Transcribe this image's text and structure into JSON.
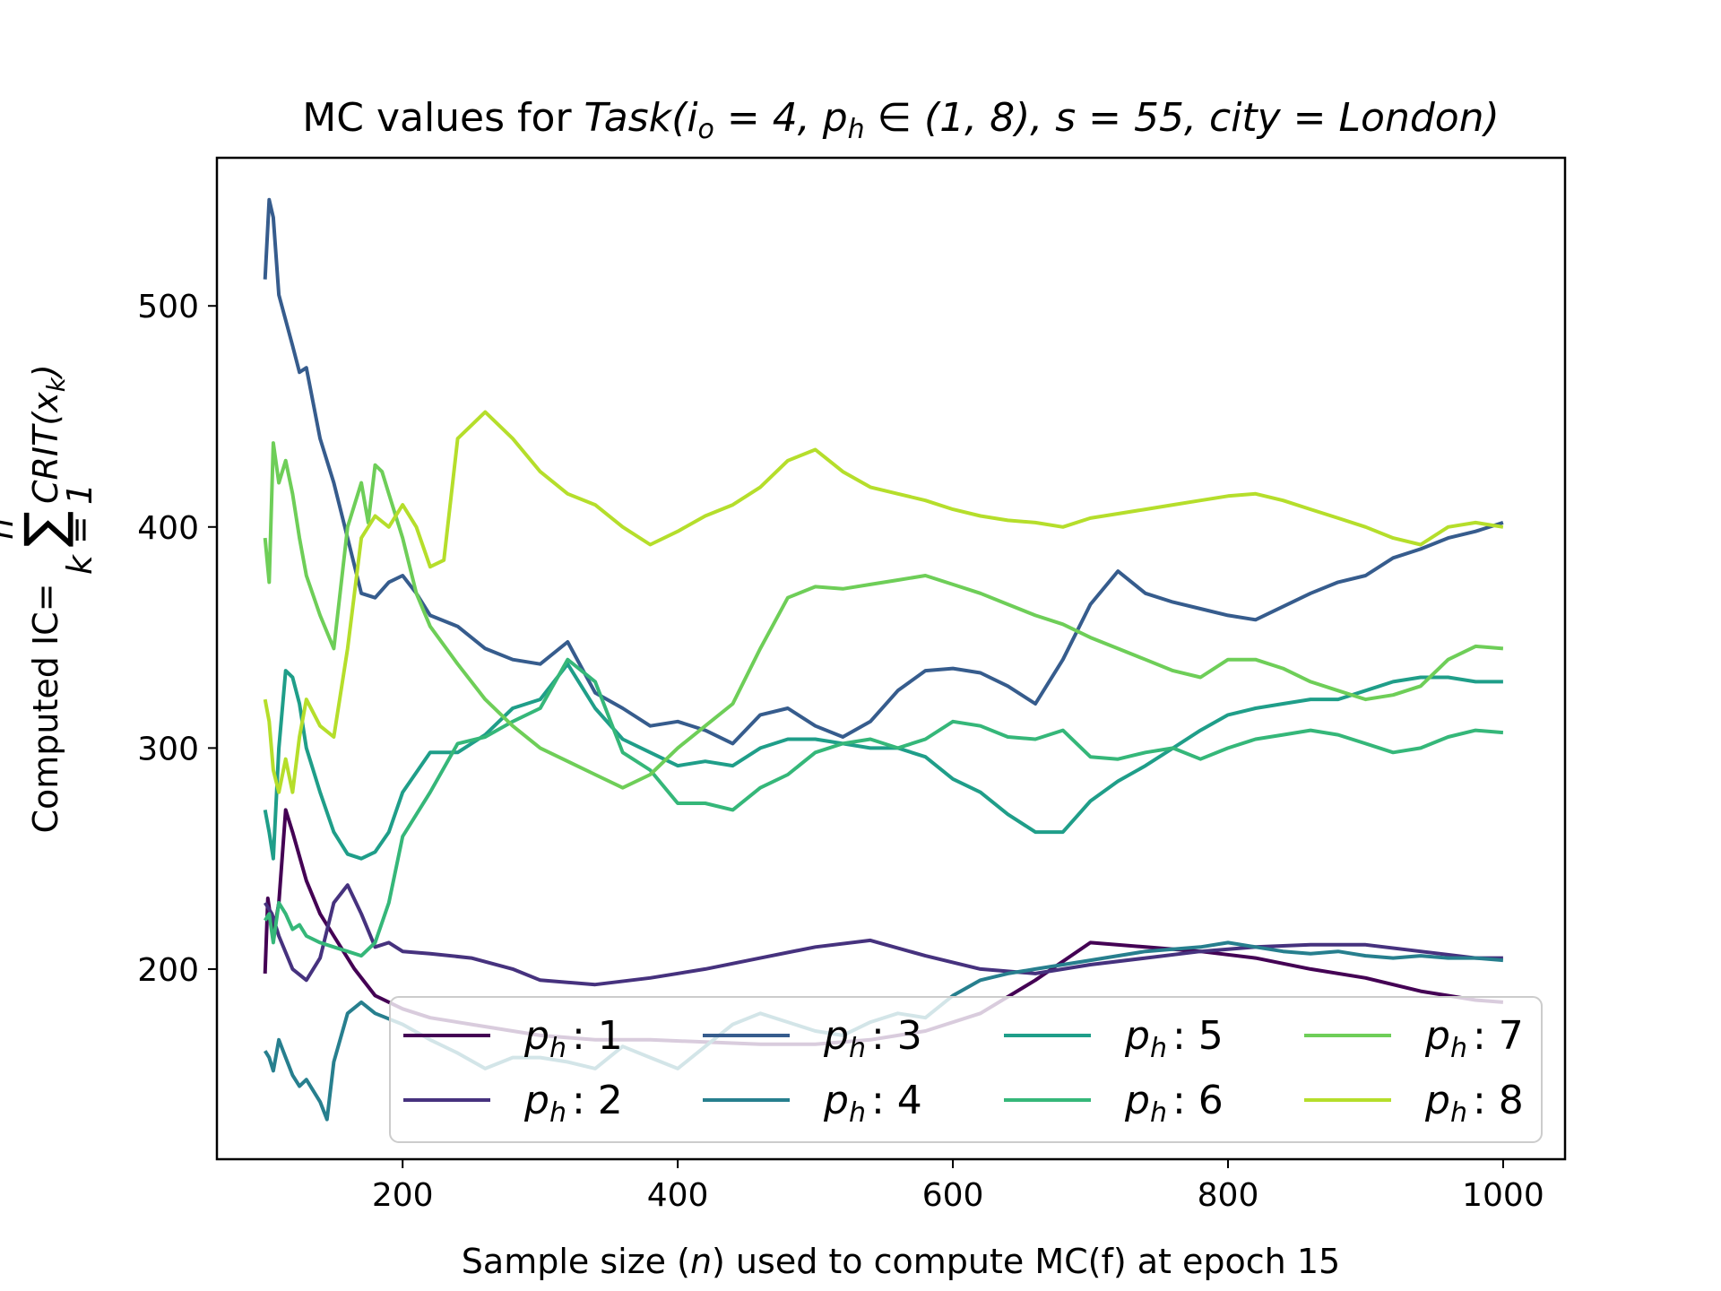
{
  "chart_data": {
    "type": "line",
    "title_plain": "MC values for ",
    "title_math": "Task(i",
    "title_sub_o": "o",
    "title_math_rest_1": " = 4, p",
    "title_sub_h": "h",
    "title_math_rest_2": " ∈ (1, 8), s = 55, city = London)",
    "xlabel_pre": "Sample size (",
    "xlabel_var": "n",
    "xlabel_post": ") used to compute MC(f) at epoch 15",
    "ylabel_pre": "Computed IC= ",
    "ylabel_sum": "∑",
    "ylabel_sum_top": "n",
    "ylabel_sum_bottom": "k = 1",
    "ylabel_expr": "CRIT(x",
    "ylabel_expr_sub": "k",
    "ylabel_expr_close": ")",
    "xlim": [
      65,
      1045
    ],
    "ylim": [
      114,
      567
    ],
    "xticks": [
      200,
      400,
      600,
      800,
      1000
    ],
    "xtick_labels": [
      "200",
      "400",
      "600",
      "800",
      "1000"
    ],
    "yticks": [
      200,
      300,
      400,
      500
    ],
    "ytick_labels": [
      "200",
      "300",
      "400",
      "500"
    ],
    "grid": false,
    "legend_position": "lower-center",
    "series": [
      {
        "name": "p_h : 1",
        "label_var": "p",
        "label_sub": "h",
        "label_val": ": 1",
        "color": "#440154",
        "x": [
          100,
          102,
          106,
          110,
          115,
          120,
          130,
          140,
          150,
          165,
          180,
          200,
          220,
          250,
          280,
          300,
          340,
          380,
          420,
          460,
          500,
          540,
          580,
          620,
          660,
          700,
          740,
          780,
          820,
          860,
          900,
          940,
          980,
          1000
        ],
        "y": [
          198,
          232,
          215,
          230,
          272,
          262,
          240,
          225,
          215,
          200,
          188,
          182,
          178,
          175,
          172,
          170,
          168,
          168,
          167,
          166,
          166,
          168,
          172,
          180,
          195,
          212,
          210,
          208,
          205,
          200,
          196,
          190,
          186,
          185
        ]
      },
      {
        "name": "p_h : 2",
        "label_var": "p",
        "label_sub": "h",
        "label_val": ": 2",
        "color": "#46327e",
        "x": [
          100,
          105,
          110,
          120,
          130,
          140,
          150,
          160,
          170,
          180,
          190,
          200,
          220,
          250,
          280,
          300,
          340,
          380,
          420,
          460,
          500,
          540,
          580,
          620,
          660,
          700,
          740,
          780,
          820,
          860,
          900,
          940,
          980,
          1000
        ],
        "y": [
          230,
          225,
          215,
          200,
          195,
          205,
          230,
          238,
          225,
          210,
          212,
          208,
          207,
          205,
          200,
          195,
          193,
          196,
          200,
          205,
          210,
          213,
          206,
          200,
          198,
          202,
          205,
          208,
          210,
          211,
          211,
          208,
          205,
          205
        ]
      },
      {
        "name": "p_h : 3",
        "label_var": "p",
        "label_sub": "h",
        "label_val": ": 3",
        "color": "#365c8d",
        "x": [
          100,
          103,
          106,
          110,
          120,
          125,
          130,
          140,
          150,
          160,
          170,
          180,
          190,
          200,
          210,
          220,
          240,
          260,
          280,
          300,
          320,
          340,
          360,
          380,
          400,
          420,
          440,
          460,
          480,
          500,
          520,
          540,
          560,
          580,
          600,
          620,
          640,
          660,
          680,
          700,
          720,
          740,
          760,
          780,
          800,
          820,
          840,
          860,
          880,
          900,
          920,
          940,
          960,
          980,
          1000
        ],
        "y": [
          512,
          548,
          540,
          505,
          482,
          470,
          472,
          440,
          420,
          395,
          370,
          368,
          375,
          378,
          370,
          360,
          355,
          345,
          340,
          338,
          348,
          325,
          318,
          310,
          312,
          308,
          302,
          315,
          318,
          310,
          305,
          312,
          326,
          335,
          336,
          334,
          328,
          320,
          340,
          365,
          380,
          370,
          366,
          363,
          360,
          358,
          364,
          370,
          375,
          378,
          386,
          390,
          395,
          398,
          402
        ]
      },
      {
        "name": "p_h : 4",
        "label_var": "p",
        "label_sub": "h",
        "label_val": ": 4",
        "color": "#277f8e",
        "x": [
          100,
          103,
          106,
          110,
          115,
          120,
          125,
          130,
          140,
          145,
          150,
          160,
          170,
          180,
          200,
          220,
          240,
          260,
          280,
          300,
          320,
          340,
          360,
          380,
          400,
          420,
          440,
          460,
          480,
          500,
          520,
          540,
          560,
          580,
          600,
          620,
          640,
          660,
          680,
          700,
          720,
          740,
          760,
          780,
          800,
          820,
          840,
          860,
          880,
          900,
          920,
          940,
          960,
          980,
          1000
        ],
        "y": [
          163,
          160,
          154,
          168,
          160,
          152,
          147,
          150,
          140,
          132,
          158,
          180,
          185,
          180,
          175,
          168,
          162,
          155,
          160,
          160,
          158,
          155,
          165,
          160,
          155,
          165,
          175,
          180,
          176,
          172,
          170,
          176,
          180,
          178,
          188,
          195,
          198,
          200,
          202,
          204,
          206,
          208,
          209,
          210,
          212,
          210,
          208,
          207,
          208,
          206,
          205,
          206,
          205,
          205,
          204
        ]
      },
      {
        "name": "p_h : 5",
        "label_var": "p",
        "label_sub": "h",
        "label_val": ": 5",
        "color": "#1f9e89",
        "x": [
          100,
          103,
          106,
          110,
          115,
          120,
          125,
          130,
          140,
          150,
          160,
          170,
          180,
          190,
          200,
          220,
          240,
          260,
          280,
          300,
          320,
          340,
          360,
          380,
          400,
          420,
          440,
          460,
          480,
          500,
          520,
          540,
          560,
          580,
          600,
          620,
          640,
          660,
          680,
          700,
          720,
          740,
          760,
          780,
          800,
          820,
          840,
          860,
          880,
          900,
          920,
          940,
          960,
          980,
          1000
        ],
        "y": [
          272,
          262,
          250,
          300,
          335,
          332,
          320,
          300,
          280,
          262,
          252,
          250,
          253,
          262,
          280,
          298,
          298,
          306,
          318,
          322,
          338,
          318,
          304,
          298,
          292,
          294,
          292,
          300,
          304,
          304,
          302,
          300,
          300,
          296,
          286,
          280,
          270,
          262,
          262,
          276,
          285,
          292,
          300,
          308,
          315,
          318,
          320,
          322,
          322,
          326,
          330,
          332,
          332,
          330,
          330
        ]
      },
      {
        "name": "p_h : 6",
        "label_var": "p",
        "label_sub": "h",
        "label_val": ": 6",
        "color": "#35b779",
        "x": [
          100,
          103,
          106,
          110,
          115,
          120,
          125,
          130,
          140,
          150,
          160,
          170,
          180,
          190,
          200,
          220,
          240,
          260,
          280,
          300,
          320,
          340,
          360,
          380,
          400,
          420,
          440,
          460,
          480,
          500,
          520,
          540,
          560,
          580,
          600,
          620,
          640,
          660,
          680,
          700,
          720,
          740,
          760,
          780,
          800,
          820,
          840,
          860,
          880,
          900,
          920,
          940,
          960,
          980,
          1000
        ],
        "y": [
          222,
          225,
          212,
          230,
          225,
          218,
          220,
          215,
          212,
          210,
          208,
          206,
          212,
          230,
          260,
          280,
          302,
          305,
          312,
          318,
          340,
          330,
          298,
          290,
          275,
          275,
          272,
          282,
          288,
          298,
          302,
          304,
          300,
          304,
          312,
          310,
          305,
          304,
          308,
          296,
          295,
          298,
          300,
          295,
          300,
          304,
          306,
          308,
          306,
          302,
          298,
          300,
          305,
          308,
          307
        ]
      },
      {
        "name": "p_h : 7",
        "label_var": "p",
        "label_sub": "h",
        "label_val": ": 7",
        "color": "#6ece58",
        "x": [
          100,
          103,
          106,
          110,
          115,
          120,
          125,
          130,
          140,
          150,
          160,
          170,
          175,
          180,
          185,
          190,
          200,
          210,
          220,
          240,
          260,
          280,
          300,
          320,
          340,
          360,
          380,
          400,
          420,
          440,
          460,
          480,
          500,
          520,
          540,
          560,
          580,
          600,
          620,
          640,
          660,
          680,
          700,
          720,
          740,
          760,
          780,
          800,
          820,
          840,
          860,
          880,
          900,
          920,
          940,
          960,
          980,
          1000
        ],
        "y": [
          395,
          375,
          438,
          420,
          430,
          415,
          395,
          378,
          360,
          345,
          400,
          420,
          402,
          428,
          425,
          415,
          395,
          370,
          355,
          338,
          322,
          310,
          300,
          294,
          288,
          282,
          288,
          300,
          310,
          320,
          345,
          368,
          373,
          372,
          374,
          376,
          378,
          374,
          370,
          365,
          360,
          356,
          350,
          345,
          340,
          335,
          332,
          340,
          340,
          336,
          330,
          326,
          322,
          324,
          328,
          340,
          346,
          345
        ]
      },
      {
        "name": "p_h : 8",
        "label_var": "p",
        "label_sub": "h",
        "label_val": ": 8",
        "color": "#b5de2b",
        "x": [
          100,
          103,
          106,
          110,
          115,
          120,
          125,
          130,
          140,
          150,
          160,
          170,
          180,
          190,
          200,
          210,
          220,
          230,
          240,
          260,
          280,
          300,
          320,
          340,
          360,
          380,
          400,
          420,
          440,
          460,
          480,
          500,
          520,
          540,
          560,
          580,
          600,
          620,
          640,
          660,
          680,
          700,
          720,
          740,
          760,
          780,
          800,
          820,
          840,
          860,
          880,
          900,
          920,
          940,
          960,
          980,
          1000
        ],
        "y": [
          322,
          312,
          290,
          280,
          295,
          280,
          305,
          322,
          310,
          305,
          345,
          395,
          405,
          400,
          410,
          400,
          382,
          385,
          440,
          452,
          440,
          425,
          415,
          410,
          400,
          392,
          398,
          405,
          410,
          418,
          430,
          435,
          425,
          418,
          415,
          412,
          408,
          405,
          403,
          402,
          400,
          404,
          406,
          408,
          410,
          412,
          414,
          415,
          412,
          408,
          404,
          400,
          395,
          392,
          400,
          402,
          400
        ]
      }
    ]
  }
}
